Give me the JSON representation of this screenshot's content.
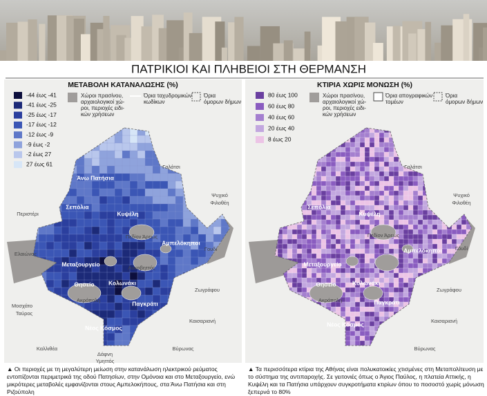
{
  "header": {
    "title": "ΠΑΤΡΙΚΙΟΙ ΚΑΙ ΠΛΗΒΕΙΟΙ ΣΤΗ ΘΕΡΜΑΝΣΗ"
  },
  "maps": [
    {
      "title": "ΜΕΤΑΒΟΛΗ ΚΑΤΑΝΑΛΩΣΗΣ (%)",
      "legend": [
        {
          "label": "-44 έως -41",
          "color": "#0d0f3d"
        },
        {
          "label": "-41 έως -25",
          "color": "#1c2a78"
        },
        {
          "label": "-25 έως -17",
          "color": "#2b3f9e"
        },
        {
          "label": "-17 έως -12",
          "color": "#3b56b5"
        },
        {
          "label": "-12 έως -9",
          "color": "#5f78c8"
        },
        {
          "label": "-9 έως -2",
          "color": "#8fa3dc"
        },
        {
          "label": "-2 έως 27",
          "color": "#b9c7ec"
        },
        {
          "label": "27 έως 61",
          "color": "#d7e6f7"
        }
      ],
      "green_label": [
        "Χώροι πρασίνου,",
        "αρχαιολογικοί χώ-",
        "ροι, περιοχές ειδι-",
        "κών χρήσεων"
      ],
      "boundary_label": [
        "Όρια ταχυδρομικών",
        "κωδίκων"
      ],
      "neighbors_label": [
        "Όρια",
        "όμορων δήμων"
      ],
      "places": [
        "Άνω Πατήσια",
        "Σεπόλια",
        "Κυψέλη",
        "Πεδίον Άρεως",
        "Αμπελόκηποι",
        "Γουδί",
        "Μεταξουργείο",
        "Θησείο",
        "Ακρόπολη",
        "Κολωνάκι",
        "Λυκαβηττός",
        "Παγκράτι",
        "Νέος Κόσμος",
        "Περιστέρι",
        "Γαλάτσι",
        "Ψυχικό",
        "Φιλοθέη",
        "Ελαιώνας",
        "Μοσχάτο",
        "Ταύρος",
        "Καλλιθέα",
        "Δάφνη",
        "Υμηττός",
        "Βύρωνας",
        "Καισαριανή",
        "Ζωγράφου"
      ],
      "caption": "Οι περιοχές με τη μεγαλύτερη μείωση στην κατανάλωση ηλεκτρικού ρεύματος εντοπίζονται περιμετρικά της οδού Πατησίων, στην Ομόνοια και στο Μεταξουργείο, ενώ μικρότερες μεταβολές εμφανίζονται στους Αμπελοκήπους, στα Άνω Πατήσια και στη Ριζούπολη"
    },
    {
      "title": "ΚΤΙΡΙΑ ΧΩΡΙΣ ΜΟΝΩΣΗ (%)",
      "legend": [
        {
          "label": "80 έως 100",
          "color": "#6a3fa0"
        },
        {
          "label": "60 έως 80",
          "color": "#8a5cc0"
        },
        {
          "label": "40 έως 60",
          "color": "#a47fcf"
        },
        {
          "label": "20 έως 40",
          "color": "#c2a7df"
        },
        {
          "label": "8 έως 20",
          "color": "#ecc4e6"
        }
      ],
      "green_label": [
        "Χώροι πρασίνου,",
        "αρχαιολογικοί χώ-",
        "ροι, περιοχές ειδι-",
        "κών χρήσεων"
      ],
      "boundary_label": [
        "Όρια απογραφικών",
        "τομέων"
      ],
      "neighbors_label": [
        "Όρια",
        "όμορων δήμων"
      ],
      "places": [
        "Γαλάτσι",
        "Ψυχικό",
        "Φιλοθέη",
        "Σεπόλια",
        "Κυψέλη",
        "Πεδίον Άρεως",
        "Αμπελόκηποι",
        "Γουδί",
        "Μεταξουργείο",
        "Θησείο",
        "Ακρόπολη",
        "Κολωνάκι",
        "Παγκράτι",
        "Νέος Κόσμος",
        "Ζωγράφου",
        "Καισαριανή",
        "Βύρωνας"
      ],
      "caption": "Τα περισσότερα κτίρια της Αθήνας είναι πολυκατοικίες χτισμένες στη Μεταπολίτευση με το σύστημα της αντιπαροχής. Σε γειτονιές όπως ο Άγιος Παύλος, η πλατεία Αττικής, η Κυψέλη και τα Πατήσια υπάρχουν συγκροτήματα κτιρίων όπου το ποσοστό χωρίς μόνωση ξεπερνά το 80%"
    }
  ]
}
